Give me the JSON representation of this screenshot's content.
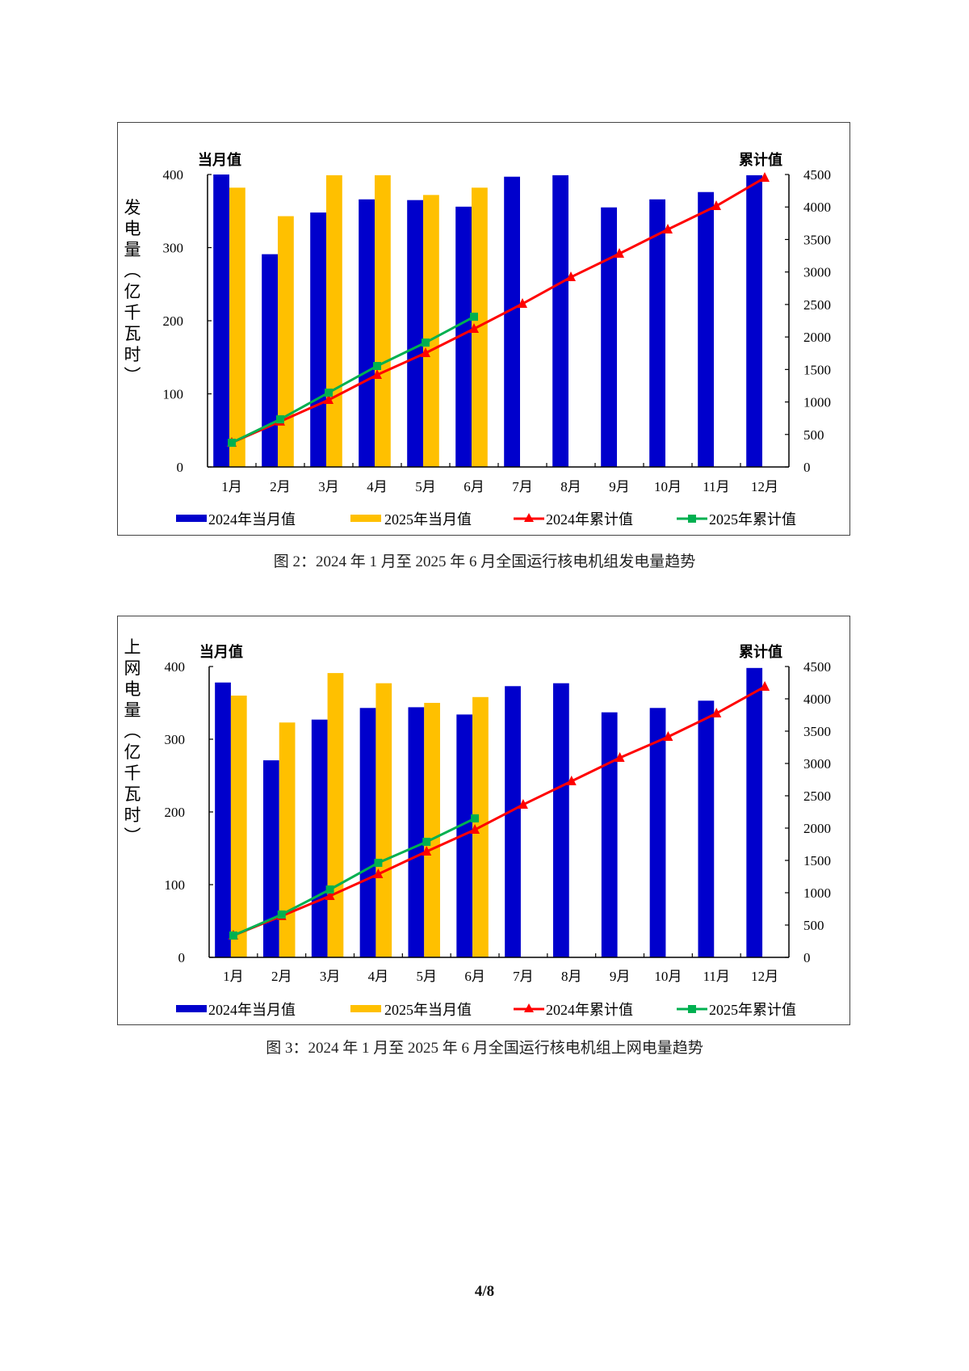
{
  "page": {
    "number_label": "4/8"
  },
  "legend_labels": [
    "2024年当月值",
    "2025年当月值",
    "2024年累计值",
    "2025年累计值"
  ],
  "colors": {
    "bar_2024": "#0000CC",
    "bar_2025": "#FFC000",
    "cum_2024": "#FF0000",
    "cum_2025": "#00B050"
  },
  "chart_data": [
    {
      "type": "bar",
      "caption": "图 2：2024 年 1 月至 2025 年 6 月全国运行核电机组发电量趋势",
      "ylabel": "发电量（亿千瓦时）",
      "ylabel_chars": [
        "发",
        "电",
        "量",
        "︵",
        "亿",
        "千",
        "瓦",
        "时",
        "︶"
      ],
      "left_axis_title": "当月值",
      "right_axis_title": "累计值",
      "categories": [
        "1月",
        "2月",
        "3月",
        "4月",
        "5月",
        "6月",
        "7月",
        "8月",
        "9月",
        "10月",
        "11月",
        "12月"
      ],
      "ylim": [
        0,
        400
      ],
      "yticks": [
        0,
        100,
        200,
        300,
        400
      ],
      "y2lim": [
        0,
        4500
      ],
      "y2ticks": [
        0,
        500,
        1000,
        1500,
        2000,
        2500,
        3000,
        3500,
        4000,
        4500
      ],
      "legend_position": "bottom",
      "grid": false,
      "series": [
        {
          "name": "2024年当月值",
          "kind": "bar",
          "axis": "left",
          "values": [
            400,
            291,
            348,
            366,
            365,
            356,
            397,
            399,
            355,
            366,
            376,
            399
          ]
        },
        {
          "name": "2025年当月值",
          "kind": "bar",
          "axis": "left",
          "values": [
            382,
            343,
            399,
            399,
            372,
            382
          ]
        },
        {
          "name": "2024年累计值",
          "kind": "line",
          "marker": "triangle",
          "axis": "right",
          "values": [
            373,
            700,
            1032,
            1417,
            1753,
            2126,
            2511,
            2921,
            3282,
            3655,
            4015,
            4450
          ]
        },
        {
          "name": "2025年累计值",
          "kind": "line",
          "marker": "square",
          "axis": "right",
          "values": [
            373,
            733,
            1144,
            1554,
            1914,
            2312
          ]
        }
      ]
    },
    {
      "type": "bar",
      "caption": "图 3：2024 年 1 月至 2025 年 6 月全国运行核电机组上网电量趋势",
      "ylabel": "上网电量（亿千瓦时）",
      "ylabel_chars": [
        "上",
        "网",
        "电",
        "量",
        "︵",
        "亿",
        "千",
        "瓦",
        "时",
        "︶"
      ],
      "left_axis_title": "当月值",
      "right_axis_title": "累计值",
      "categories": [
        "1月",
        "2月",
        "3月",
        "4月",
        "5月",
        "6月",
        "7月",
        "8月",
        "9月",
        "10月",
        "11月",
        "12月"
      ],
      "ylim": [
        0,
        400
      ],
      "yticks": [
        0,
        100,
        200,
        300,
        400
      ],
      "y2lim": [
        0,
        4500
      ],
      "y2ticks": [
        0,
        500,
        1000,
        1500,
        2000,
        2500,
        3000,
        3500,
        4000,
        4500
      ],
      "legend_position": "bottom",
      "grid": false,
      "series": [
        {
          "name": "2024年当月值",
          "kind": "bar",
          "axis": "left",
          "values": [
            378,
            271,
            327,
            343,
            344,
            334,
            373,
            377,
            337,
            343,
            353,
            398
          ]
        },
        {
          "name": "2025年当月值",
          "kind": "bar",
          "axis": "left",
          "values": [
            360,
            323,
            391,
            377,
            350,
            358
          ]
        },
        {
          "name": "2024年累计值",
          "kind": "line",
          "marker": "triangle",
          "axis": "right",
          "values": [
            338,
            640,
            950,
            1288,
            1638,
            1975,
            2363,
            2725,
            3088,
            3413,
            3775,
            4188
          ]
        },
        {
          "name": "2025年累计值",
          "kind": "line",
          "marker": "square",
          "axis": "right",
          "values": [
            338,
            663,
            1050,
            1463,
            1788,
            2150
          ]
        }
      ]
    }
  ]
}
